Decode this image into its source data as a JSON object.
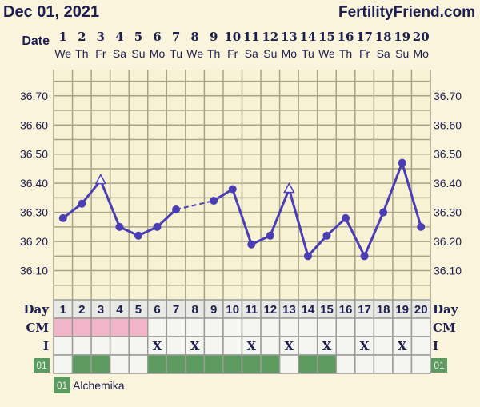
{
  "header": {
    "date": "Dec 01, 2021",
    "site": "FertilityFriend.com"
  },
  "labels": {
    "date": "Date",
    "day": "Day",
    "cm": "CM",
    "i": "I",
    "tag": "01"
  },
  "legend": {
    "tag": "01",
    "name": "Alchemika"
  },
  "colors": {
    "line": "#4b3db5",
    "pink": "#f2b4c8",
    "green": "#5c9a5f",
    "grid": "#a8a287",
    "plot_bg": "#f8f2d4",
    "cell_bg": "#f5f5f1",
    "day_bg": "#e9e9e5"
  },
  "chart_data": {
    "type": "line",
    "title": "",
    "dates": [
      "1",
      "2",
      "3",
      "4",
      "5",
      "6",
      "7",
      "8",
      "9",
      "10",
      "11",
      "12",
      "13",
      "14",
      "15",
      "16",
      "17",
      "18",
      "19",
      "20"
    ],
    "weekdays": [
      "We",
      "Th",
      "Fr",
      "Sa",
      "Su",
      "Mo",
      "Tu",
      "We",
      "Th",
      "Fr",
      "Sa",
      "Su",
      "Mo",
      "Tu",
      "We",
      "Th",
      "Fr",
      "Sa",
      "Su",
      "Mo"
    ],
    "temperatures": [
      36.28,
      36.33,
      36.41,
      36.25,
      36.22,
      36.25,
      36.31,
      null,
      36.34,
      36.38,
      36.19,
      36.22,
      36.38,
      36.15,
      36.22,
      36.28,
      36.15,
      36.3,
      36.47,
      36.25
    ],
    "markers": [
      "dot",
      "dot",
      "triangle",
      "dot",
      "dot",
      "dot",
      "dot",
      null,
      "dot",
      "dot",
      "dot",
      "dot",
      "triangle",
      "dot",
      "dot",
      "dot",
      "dot",
      "dot",
      "dot",
      "dot"
    ],
    "yticks": [
      "36.10",
      "36.20",
      "36.30",
      "36.40",
      "36.50",
      "36.60",
      "36.70"
    ],
    "ylim": [
      36.0,
      36.79
    ],
    "grid_step": 0.05,
    "grid": true,
    "cm_pink_days": [
      1,
      2,
      3,
      4,
      5
    ],
    "intercourse_days": [
      6,
      8,
      11,
      13,
      15,
      17,
      19
    ],
    "intercourse_mark": "X",
    "tag01_days": [
      2,
      3,
      6,
      7,
      8,
      9,
      10,
      11,
      12,
      14,
      15
    ]
  }
}
